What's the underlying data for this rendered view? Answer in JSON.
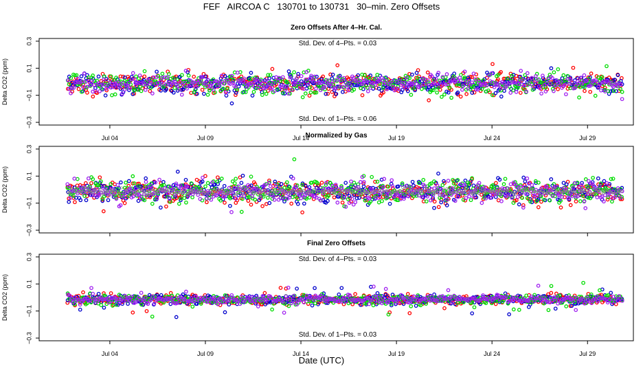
{
  "title": "FEF   AIRCOA C   130701 to 130731   30–min. Zero Offsets",
  "xlabel": "Date (UTC)",
  "colors": {
    "red": "#ff0000",
    "blue": "#0000cc",
    "green": "#00dd00",
    "purple": "#a020f0",
    "gray": "#888888",
    "black": "#000000"
  },
  "chart_data": [
    {
      "type": "scatter",
      "title": "Zero Offsets After 4–Hr. Cal.",
      "ylabel": "Delta CO2 (ppm)",
      "ylim": [
        -0.32,
        0.32
      ],
      "yticks": [
        0.3,
        0.1,
        -0.1,
        -0.3
      ],
      "ytick_labels": [
        "0.3",
        "0.1",
        "−0.1",
        "−0.3"
      ],
      "xlim": [
        0.3,
        31.4
      ],
      "xticks": [
        4,
        9,
        14,
        19,
        24,
        29
      ],
      "xtick_labels": [
        "Jul 04",
        "Jul 09",
        "Jul 14",
        "Jul 19",
        "Jul 24",
        "Jul 29"
      ],
      "annotation_top": "Std. Dev. of 4–Pts. =  0.03",
      "annotation_bottom": "Std. Dev. of 1–Pts. =  0.06",
      "series": [
        {
          "name": "gas-red",
          "color": "red",
          "spread": 0.06
        },
        {
          "name": "gas-blue",
          "color": "blue",
          "spread": 0.06
        },
        {
          "name": "gas-green",
          "color": "green",
          "spread": 0.065
        },
        {
          "name": "gas-purple",
          "color": "purple",
          "spread": 0.05
        }
      ]
    },
    {
      "type": "scatter",
      "title": "Normalized by Gas",
      "ylabel": "Delta CO2 (ppm)",
      "ylim": [
        -0.32,
        0.32
      ],
      "yticks": [
        0.3,
        0.1,
        -0.1,
        -0.3
      ],
      "ytick_labels": [
        "0.3",
        "0.1",
        "−0.1",
        "−0.3"
      ],
      "xlim": [
        0.3,
        31.4
      ],
      "xticks": [
        4,
        9,
        14,
        19,
        24,
        29
      ],
      "xtick_labels": [
        "",
        "",
        "",
        "",
        "",
        ""
      ],
      "annotation_top": "",
      "annotation_bottom": "",
      "series": [
        {
          "name": "gas-red",
          "color": "red",
          "spread": 0.07
        },
        {
          "name": "gas-blue",
          "color": "blue",
          "spread": 0.07
        },
        {
          "name": "gas-green",
          "color": "green",
          "spread": 0.075
        },
        {
          "name": "gas-purple",
          "color": "purple",
          "spread": 0.06
        },
        {
          "name": "normalized-fit",
          "color": "gray",
          "spread": 0.02
        }
      ]
    },
    {
      "type": "scatter",
      "title": "Final Zero Offsets",
      "ylabel": "Delta CO2 (ppm)",
      "ylim": [
        -0.32,
        0.32
      ],
      "yticks": [
        0.3,
        0.1,
        -0.1,
        -0.3
      ],
      "ytick_labels": [
        "0.3",
        "0.1",
        "−0.1",
        "−0.3"
      ],
      "xlim": [
        0.3,
        31.4
      ],
      "xticks": [
        4,
        9,
        14,
        19,
        24,
        29
      ],
      "xtick_labels": [
        "Jul 04",
        "Jul 09",
        "Jul 14",
        "Jul 19",
        "Jul 24",
        "Jul 29"
      ],
      "annotation_top": "Std. Dev. of 4–Pts. =  0.03",
      "annotation_bottom": "Std. Dev. of 1–Pts. =  0.03",
      "series": [
        {
          "name": "gas-red",
          "color": "red",
          "spread": 0.03
        },
        {
          "name": "gas-blue",
          "color": "blue",
          "spread": 0.03
        },
        {
          "name": "gas-green",
          "color": "green",
          "spread": 0.03
        },
        {
          "name": "gas-purple",
          "color": "purple",
          "spread": 0.025
        }
      ]
    }
  ]
}
